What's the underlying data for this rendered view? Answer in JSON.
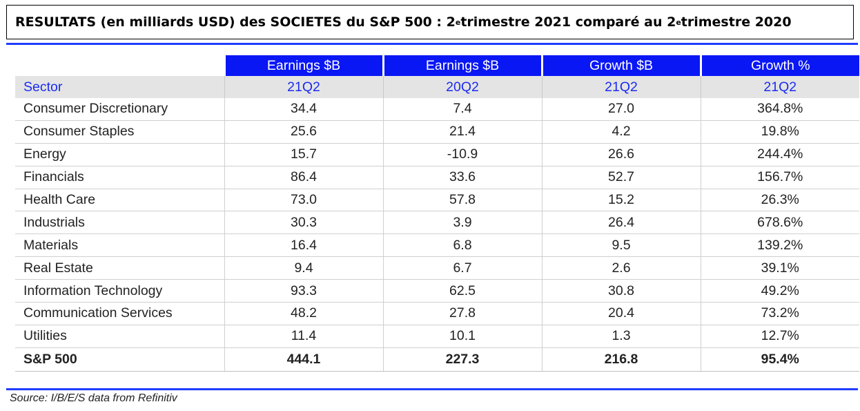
{
  "title": {
    "part1": "RESULTATS (en milliards USD) des SOCIETES du S&P 500 : 2",
    "sup1": "e",
    "part2": " trimestre 2021 comparé au 2",
    "sup2": "e",
    "part3": " trimestre 2020"
  },
  "chart_data": {
    "type": "table",
    "header_row1": [
      "",
      "Earnings $B",
      "Earnings $B",
      "Growth $B",
      "Growth %"
    ],
    "header_row2": [
      "Sector",
      "21Q2",
      "20Q2",
      "21Q2",
      "21Q2"
    ],
    "rows": [
      [
        "Consumer Discretionary",
        "34.4",
        "7.4",
        "27.0",
        "364.8%"
      ],
      [
        "Consumer Staples",
        "25.6",
        "21.4",
        "4.2",
        "19.8%"
      ],
      [
        "Energy",
        "15.7",
        "-10.9",
        "26.6",
        "244.4%"
      ],
      [
        "Financials",
        "86.4",
        "33.6",
        "52.7",
        "156.7%"
      ],
      [
        "Health Care",
        "73.0",
        "57.8",
        "15.2",
        "26.3%"
      ],
      [
        "Industrials",
        "30.3",
        "3.9",
        "26.4",
        "678.6%"
      ],
      [
        "Materials",
        "16.4",
        "6.8",
        "9.5",
        "139.2%"
      ],
      [
        "Real Estate",
        "9.4",
        "6.7",
        "2.6",
        "39.1%"
      ],
      [
        "Information Technology",
        "93.3",
        "62.5",
        "30.8",
        "49.2%"
      ],
      [
        "Communication Services",
        "48.2",
        "27.8",
        "20.4",
        "73.2%"
      ],
      [
        "Utilities",
        "11.4",
        "10.1",
        "1.3",
        "12.7%"
      ]
    ],
    "total_row": [
      "S&P 500",
      "444.1",
      "227.3",
      "216.8",
      "95.4%"
    ]
  },
  "source": "Source: I/B/E/S data from Refinitiv",
  "colors": {
    "header_blue": "#0a17f5",
    "sector_text_blue": "#1a2bf0",
    "rule_blue": "#1f3cff"
  }
}
